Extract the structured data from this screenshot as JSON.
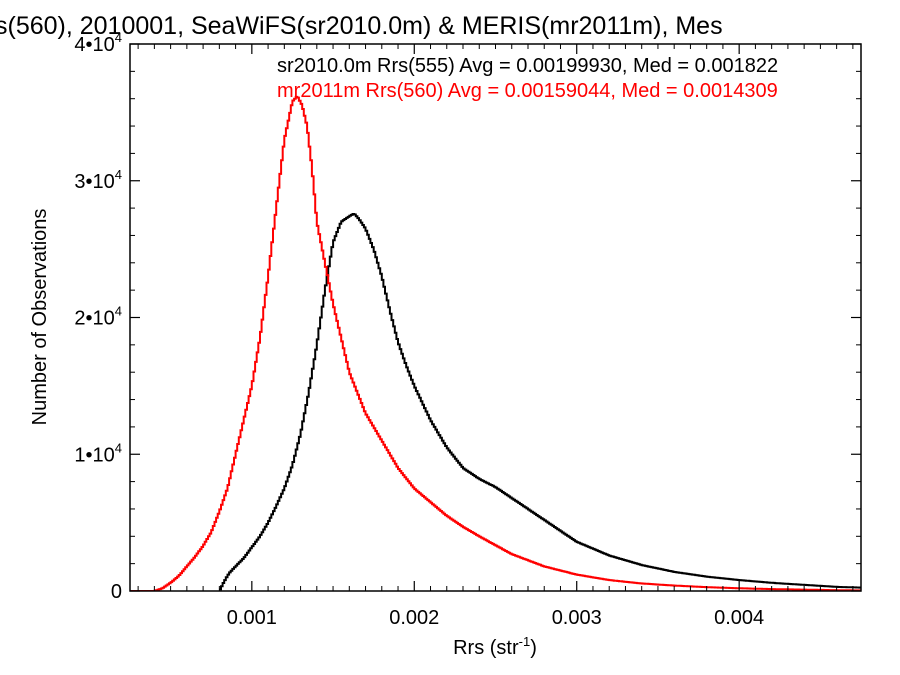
{
  "chart_data": {
    "type": "line",
    "title": "s(560), 2010001, SeaWiFS(sr2010.0m) & MERIS(mr2011m), Mes",
    "xlabel": "Rrs (str",
    "xlabel_sup": "-1",
    "xlabel_close": ")",
    "ylabel": "Number of Observations",
    "xlim": [
      0.00025,
      0.00475
    ],
    "ylim": [
      0,
      40000
    ],
    "x_ticks": [
      {
        "value": 0.001,
        "label": "0.001"
      },
      {
        "value": 0.002,
        "label": "0.002"
      },
      {
        "value": 0.003,
        "label": "0.003"
      },
      {
        "value": 0.004,
        "label": "0.004"
      }
    ],
    "y_ticks": [
      {
        "value": 0,
        "base": "0",
        "exp": ""
      },
      {
        "value": 10000,
        "base": "1•10",
        "exp": "4"
      },
      {
        "value": 20000,
        "base": "2•10",
        "exp": "4"
      },
      {
        "value": 30000,
        "base": "3•10",
        "exp": "4"
      },
      {
        "value": 40000,
        "base": "4•10",
        "exp": "4"
      }
    ],
    "grid": false,
    "legend_position": "top-right",
    "series": [
      {
        "name": "sr2010.0m Rrs(555) Avg = 0.00199930, Med = 0.001822",
        "color": "#000000",
        "x": [
          0.0008,
          0.00083,
          0.00086,
          0.0009,
          0.00095,
          0.001,
          0.00105,
          0.0011,
          0.00115,
          0.0012,
          0.00125,
          0.0013,
          0.00135,
          0.0014,
          0.00145,
          0.0015,
          0.00155,
          0.0016,
          0.00163,
          0.00166,
          0.0017,
          0.00175,
          0.0018,
          0.00185,
          0.0019,
          0.00195,
          0.002,
          0.0021,
          0.0022,
          0.0023,
          0.0024,
          0.0025,
          0.0026,
          0.0027,
          0.0028,
          0.0029,
          0.003,
          0.0032,
          0.0034,
          0.0036,
          0.0038,
          0.004,
          0.0042,
          0.0044,
          0.0046,
          0.00475
        ],
        "y": [
          0,
          700,
          1300,
          1800,
          2400,
          3200,
          4000,
          5000,
          6200,
          7500,
          9200,
          11500,
          14500,
          18000,
          22000,
          25500,
          27000,
          27400,
          27600,
          27200,
          26500,
          25000,
          23000,
          20500,
          18200,
          16500,
          15000,
          12500,
          10500,
          9000,
          8200,
          7600,
          6800,
          6000,
          5200,
          4400,
          3600,
          2600,
          1900,
          1400,
          1050,
          800,
          600,
          450,
          300,
          250
        ]
      },
      {
        "name": "mr2011m Rrs(560) Avg = 0.00159044, Med = 0.0014309",
        "color": "#ff0000",
        "x": [
          0.00025,
          0.0004,
          0.00045,
          0.0005,
          0.00055,
          0.0006,
          0.00065,
          0.0007,
          0.00075,
          0.0008,
          0.00085,
          0.0009,
          0.00095,
          0.001,
          0.00105,
          0.0011,
          0.00115,
          0.0012,
          0.00125,
          0.00128,
          0.00131,
          0.00134,
          0.00137,
          0.0014,
          0.00145,
          0.0015,
          0.00155,
          0.0016,
          0.0017,
          0.0018,
          0.0019,
          0.002,
          0.0021,
          0.0022,
          0.0023,
          0.0024,
          0.0026,
          0.0028,
          0.003,
          0.0032,
          0.0034,
          0.0036,
          0.0038,
          0.004,
          0.0042,
          0.0044,
          0.0046,
          0.00475
        ],
        "y": [
          0,
          0,
          200,
          600,
          1100,
          1800,
          2500,
          3300,
          4300,
          5800,
          7500,
          10000,
          12500,
          15000,
          18500,
          23000,
          28000,
          33000,
          35800,
          36200,
          35500,
          34000,
          31000,
          27000,
          24000,
          21000,
          18500,
          16000,
          13000,
          11000,
          9000,
          7500,
          6500,
          5500,
          4700,
          4000,
          2700,
          1800,
          1200,
          800,
          550,
          400,
          280,
          200,
          140,
          100,
          60,
          40
        ]
      }
    ]
  }
}
